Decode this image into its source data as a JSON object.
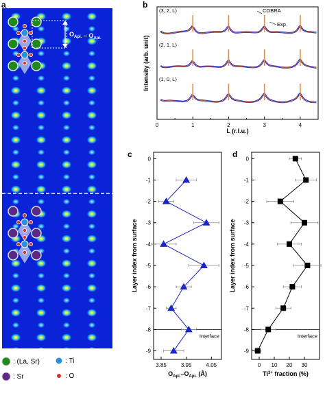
{
  "panels": {
    "a": {
      "label": "a",
      "annotation": {
        "sym": "O",
        "sub": "Api.",
        "dash": " – "
      },
      "legend": [
        {
          "label": ": (La, Sr)",
          "icon": "green-atom-icon",
          "color": "#1e8a1e"
        },
        {
          "label": ": Ti",
          "icon": "blue-atom-icon",
          "color": "#2f8fd6"
        },
        {
          "label": ": Sr",
          "icon": "purple-atom-icon",
          "color": "#5b2a86"
        },
        {
          "label": ": O",
          "icon": "red-atom-icon",
          "color": "#d8322a"
        }
      ]
    },
    "b": {
      "label": "b"
    },
    "c": {
      "label": "c"
    },
    "d": {
      "label": "d"
    }
  },
  "chart_data": [
    {
      "id": "b",
      "type": "line",
      "title": "",
      "xlabel": "L (r.l.u.)",
      "ylabel": "Intensity (arb. unit)",
      "xlim": [
        0,
        4.5
      ],
      "xticks": [
        0,
        1,
        2,
        3,
        4
      ],
      "rod_labels": [
        "(3, 2, L)",
        "(2, 1, L)",
        "(1, 0, L)"
      ],
      "legend": [
        {
          "label": "COBRA",
          "color": "#f08a24"
        },
        {
          "label": "Exp.",
          "color": "#1f2db8"
        }
      ],
      "peak_positions": [
        1,
        2,
        3,
        4
      ]
    },
    {
      "id": "c",
      "type": "scatter",
      "xlabel": {
        "sym": "O",
        "sub": "Api.",
        "dash": "–",
        "unit": " (Å)"
      },
      "ylabel": "Layer index from surface",
      "xlim": [
        3.82,
        4.09
      ],
      "ylim": [
        -9.4,
        0.3
      ],
      "xticks": [
        "3.85",
        "3.95",
        "4.05"
      ],
      "yticks": [
        "0",
        "-1",
        "-2",
        "-3",
        "-4",
        "-5",
        "-6",
        "-7",
        "-8",
        "-9"
      ],
      "interface_label": "Interface",
      "interface_y": -8,
      "color": "#1a26c8",
      "layers": [
        -1,
        -2,
        -3,
        -4,
        -5,
        -6,
        -7,
        -8,
        -9
      ],
      "values": [
        3.95,
        3.87,
        4.03,
        3.86,
        4.02,
        3.94,
        3.89,
        3.96,
        3.9
      ],
      "errors": [
        0.04,
        0.03,
        0.05,
        0.05,
        0.06,
        0.03,
        0.02,
        0.03,
        0.04
      ]
    },
    {
      "id": "d",
      "type": "scatter",
      "xlabel": {
        "sym": "Ti",
        "sup": "3+",
        "rest": " fraction (%)"
      },
      "ylabel": "Layer index from surface",
      "xlim": [
        -5,
        40
      ],
      "ylim": [
        -9.4,
        0.3
      ],
      "xticks": [
        "0",
        "10",
        "20",
        "30"
      ],
      "yticks": [
        "0",
        "-1",
        "-2",
        "-3",
        "-4",
        "-5",
        "-6",
        "-7",
        "-8",
        "-9"
      ],
      "interface_label": "Interface",
      "interface_y": -8,
      "color": "#000000",
      "layers": [
        0,
        -1,
        -2,
        -3,
        -4,
        -5,
        -6,
        -7,
        -8,
        -9
      ],
      "values": [
        24,
        31,
        14,
        30,
        20,
        32,
        22,
        16,
        6,
        -1
      ],
      "errors": [
        4,
        7,
        9,
        9,
        8,
        9,
        6,
        5,
        5,
        2
      ]
    }
  ]
}
